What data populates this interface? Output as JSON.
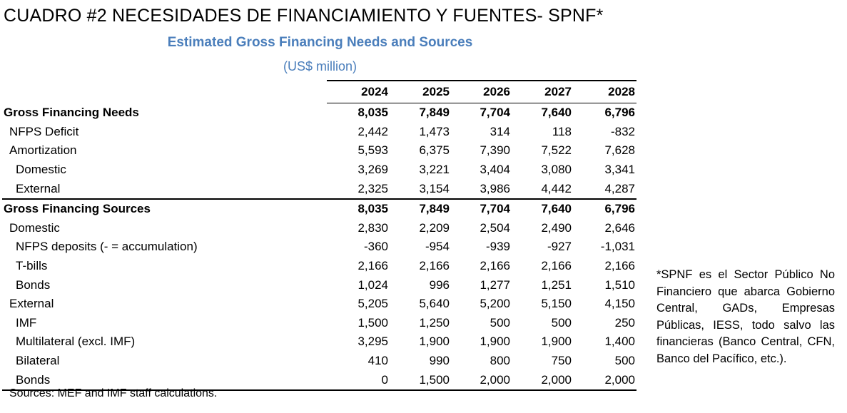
{
  "main_title": "CUADRO #2 NECESIDADES DE FINANCIAMIENTO Y FUENTES-  SPNF*",
  "table_title": "Estimated Gross Financing Needs and Sources",
  "table_subtitle": "(US$ million)",
  "columns": [
    "2024",
    "2025",
    "2026",
    "2027",
    "2028"
  ],
  "rows": [
    {
      "label": "Gross Financing Needs",
      "values": [
        "8,035",
        "7,849",
        "7,704",
        "7,640",
        "6,796"
      ]
    },
    {
      "label": "NFPS Deficit",
      "values": [
        "2,442",
        "1,473",
        "314",
        "118",
        "-832"
      ]
    },
    {
      "label": "Amortization",
      "values": [
        "5,593",
        "6,375",
        "7,390",
        "7,522",
        "7,628"
      ]
    },
    {
      "label": "Domestic",
      "values": [
        "3,269",
        "3,221",
        "3,404",
        "3,080",
        "3,341"
      ]
    },
    {
      "label": "External",
      "values": [
        "2,325",
        "3,154",
        "3,986",
        "4,442",
        "4,287"
      ]
    },
    {
      "label": "Gross Financing Sources",
      "values": [
        "8,035",
        "7,849",
        "7,704",
        "7,640",
        "6,796"
      ]
    },
    {
      "label": "Domestic",
      "values": [
        "2,830",
        "2,209",
        "2,504",
        "2,490",
        "2,646"
      ]
    },
    {
      "label": "NFPS deposits (- = accumulation)",
      "values": [
        "-360",
        "-954",
        "-939",
        "-927",
        "-1,031"
      ]
    },
    {
      "label": "T-bills",
      "values": [
        "2,166",
        "2,166",
        "2,166",
        "2,166",
        "2,166"
      ]
    },
    {
      "label": "Bonds",
      "values": [
        "1,024",
        "996",
        "1,277",
        "1,251",
        "1,510"
      ]
    },
    {
      "label": "External",
      "values": [
        "5,205",
        "5,640",
        "5,200",
        "5,150",
        "4,150"
      ]
    },
    {
      "label": "IMF",
      "values": [
        "1,500",
        "1,250",
        "500",
        "500",
        "250"
      ]
    },
    {
      "label": "Multilateral (excl. IMF)",
      "values": [
        "3,295",
        "1,900",
        "1,900",
        "1,900",
        "1,400"
      ]
    },
    {
      "label": "Bilateral",
      "values": [
        "410",
        "990",
        "800",
        "750",
        "500"
      ]
    },
    {
      "label": "Bonds",
      "values": [
        "0",
        "1,500",
        "2,000",
        "2,000",
        "2,000"
      ]
    }
  ],
  "source_note": "Sources: MEF and IMF staff calculations.",
  "side_note": "*SPNF es el Sector Público No Financiero que abarca Gobierno Central, GADs, Empresas Públicas, IESS, todo salvo las financieras (Banco Central, CFN, Banco del Pacífico, etc.)."
}
